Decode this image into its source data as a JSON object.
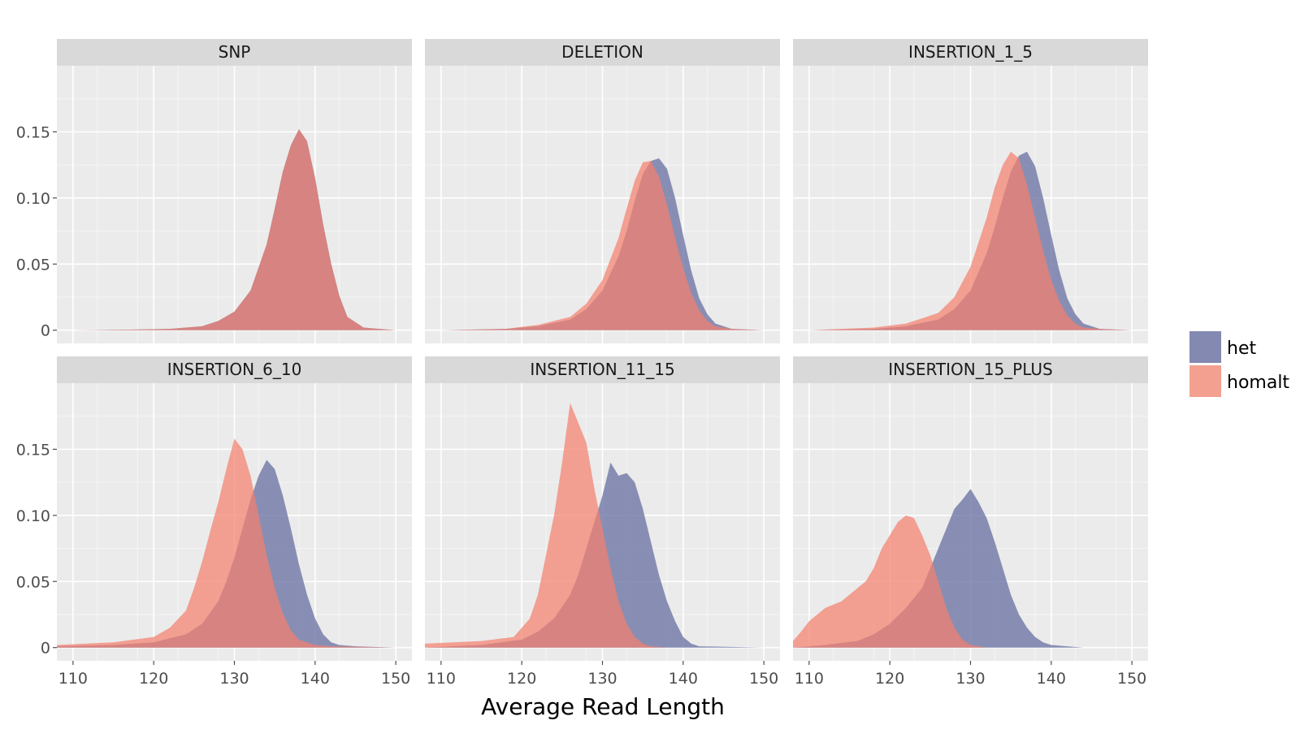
{
  "chart_data": {
    "type": "area",
    "kind": "faceted overlapping histograms",
    "xlabel": "Average Read Length",
    "ylabel": "",
    "xlim": [
      108,
      152
    ],
    "ylim": [
      -0.01,
      0.2
    ],
    "x_ticks": [
      110,
      120,
      130,
      140,
      150
    ],
    "y_ticks": [
      0,
      0.05,
      0.1,
      0.15
    ],
    "y_tick_labels": [
      "0",
      "0.05",
      "0.10",
      "0.15"
    ],
    "grid": true,
    "legend": {
      "position": "right",
      "entries": [
        {
          "label": "het",
          "color": "#8389b0"
        },
        {
          "label": "homalt",
          "color": "#f4a091"
        }
      ]
    },
    "series_colors": {
      "het": "#6b73a3",
      "homalt": "#f4806e",
      "overlap": "#cc6f6e"
    },
    "facets": [
      {
        "title": "SNP",
        "het": {
          "x": [
            110,
            118,
            122,
            126,
            128,
            130,
            132,
            134,
            135,
            136,
            137,
            138,
            139,
            140,
            141,
            142,
            143,
            144,
            146,
            150
          ],
          "y": [
            0,
            0.0005,
            0.001,
            0.003,
            0.007,
            0.014,
            0.03,
            0.065,
            0.092,
            0.12,
            0.14,
            0.152,
            0.143,
            0.115,
            0.08,
            0.05,
            0.026,
            0.01,
            0.002,
            0
          ]
        },
        "homalt": {
          "x": [
            110,
            118,
            122,
            126,
            128,
            130,
            132,
            134,
            135,
            136,
            137,
            138,
            139,
            140,
            141,
            142,
            143,
            144,
            146,
            150
          ],
          "y": [
            0,
            0.0005,
            0.001,
            0.003,
            0.007,
            0.014,
            0.03,
            0.065,
            0.092,
            0.12,
            0.14,
            0.152,
            0.143,
            0.115,
            0.08,
            0.05,
            0.026,
            0.01,
            0.002,
            0
          ]
        }
      },
      {
        "title": "DELETION",
        "het": {
          "x": [
            110,
            118,
            122,
            126,
            128,
            130,
            132,
            133,
            134,
            135,
            136,
            137,
            138,
            139,
            140,
            141,
            142,
            143,
            144,
            146,
            150
          ],
          "y": [
            0,
            0.001,
            0.003,
            0.008,
            0.016,
            0.03,
            0.056,
            0.075,
            0.098,
            0.118,
            0.128,
            0.13,
            0.122,
            0.1,
            0.072,
            0.045,
            0.024,
            0.012,
            0.005,
            0.001,
            0
          ]
        },
        "homalt": {
          "x": [
            110,
            118,
            122,
            126,
            128,
            130,
            132,
            133,
            134,
            135,
            136,
            137,
            138,
            139,
            140,
            141,
            142,
            143,
            144,
            146,
            150
          ],
          "y": [
            0,
            0.001,
            0.004,
            0.01,
            0.02,
            0.038,
            0.07,
            0.092,
            0.113,
            0.127,
            0.128,
            0.116,
            0.095,
            0.07,
            0.047,
            0.028,
            0.015,
            0.007,
            0.003,
            0.001,
            0
          ]
        }
      },
      {
        "title": "INSERTION_1_5",
        "het": {
          "x": [
            110,
            118,
            122,
            126,
            128,
            130,
            132,
            133,
            134,
            135,
            136,
            137,
            138,
            139,
            140,
            141,
            142,
            143,
            144,
            146,
            150
          ],
          "y": [
            0,
            0.001,
            0.003,
            0.008,
            0.016,
            0.03,
            0.058,
            0.078,
            0.1,
            0.12,
            0.132,
            0.135,
            0.124,
            0.1,
            0.072,
            0.045,
            0.024,
            0.012,
            0.005,
            0.001,
            0
          ]
        },
        "homalt": {
          "x": [
            110,
            118,
            122,
            126,
            128,
            130,
            132,
            133,
            134,
            135,
            136,
            137,
            138,
            139,
            140,
            141,
            142,
            143,
            144,
            146,
            150
          ],
          "y": [
            0,
            0.002,
            0.005,
            0.013,
            0.025,
            0.048,
            0.085,
            0.108,
            0.125,
            0.135,
            0.13,
            0.11,
            0.085,
            0.06,
            0.038,
            0.022,
            0.011,
            0.005,
            0.002,
            0.001,
            0
          ]
        }
      },
      {
        "title": "INSERTION_6_10",
        "het": {
          "x": [
            108,
            115,
            120,
            124,
            126,
            128,
            129,
            130,
            131,
            132,
            133,
            134,
            135,
            136,
            137,
            138,
            139,
            140,
            141,
            142,
            143,
            145,
            150
          ],
          "y": [
            0.001,
            0.002,
            0.004,
            0.01,
            0.018,
            0.035,
            0.05,
            0.068,
            0.09,
            0.112,
            0.13,
            0.142,
            0.135,
            0.115,
            0.09,
            0.063,
            0.04,
            0.022,
            0.01,
            0.004,
            0.002,
            0.001,
            0
          ]
        },
        "homalt": {
          "x": [
            108,
            115,
            120,
            122,
            124,
            125,
            126,
            127,
            128,
            129,
            130,
            131,
            132,
            133,
            134,
            135,
            136,
            137,
            138,
            140,
            142,
            150
          ],
          "y": [
            0.002,
            0.004,
            0.008,
            0.015,
            0.028,
            0.045,
            0.065,
            0.088,
            0.11,
            0.135,
            0.158,
            0.15,
            0.13,
            0.1,
            0.07,
            0.045,
            0.026,
            0.013,
            0.006,
            0.002,
            0.001,
            0
          ]
        }
      },
      {
        "title": "INSERTION_11_15",
        "het": {
          "x": [
            108,
            115,
            120,
            122,
            124,
            126,
            127,
            128,
            129,
            130,
            131,
            132,
            133,
            134,
            135,
            136,
            137,
            138,
            139,
            140,
            141,
            142,
            150
          ],
          "y": [
            0,
            0.002,
            0.006,
            0.012,
            0.022,
            0.04,
            0.055,
            0.075,
            0.095,
            0.115,
            0.14,
            0.13,
            0.132,
            0.125,
            0.105,
            0.08,
            0.055,
            0.035,
            0.02,
            0.008,
            0.003,
            0.001,
            0
          ]
        },
        "homalt": {
          "x": [
            108,
            115,
            119,
            120,
            121,
            122,
            123,
            124,
            125,
            126,
            127,
            128,
            129,
            130,
            131,
            132,
            133,
            134,
            135,
            136,
            138,
            150
          ],
          "y": [
            0.003,
            0.005,
            0.008,
            0.015,
            0.022,
            0.04,
            0.07,
            0.1,
            0.14,
            0.185,
            0.17,
            0.155,
            0.12,
            0.09,
            0.06,
            0.035,
            0.018,
            0.008,
            0.003,
            0.001,
            0,
            0
          ]
        }
      },
      {
        "title": "INSERTION_15_PLUS",
        "het": {
          "x": [
            108,
            112,
            116,
            118,
            120,
            122,
            124,
            125,
            126,
            127,
            128,
            129,
            130,
            131,
            132,
            133,
            134,
            135,
            136,
            137,
            138,
            139,
            140,
            142,
            144,
            150
          ],
          "y": [
            0,
            0.002,
            0.005,
            0.01,
            0.018,
            0.03,
            0.045,
            0.06,
            0.075,
            0.09,
            0.105,
            0.112,
            0.12,
            0.11,
            0.098,
            0.08,
            0.06,
            0.04,
            0.025,
            0.015,
            0.008,
            0.004,
            0.002,
            0.001,
            0,
            0
          ]
        },
        "homalt": {
          "x": [
            108,
            109,
            110,
            112,
            114,
            116,
            117,
            118,
            119,
            120,
            121,
            122,
            123,
            124,
            125,
            126,
            127,
            128,
            129,
            130,
            132,
            150
          ],
          "y": [
            0.005,
            0.012,
            0.02,
            0.03,
            0.035,
            0.045,
            0.05,
            0.06,
            0.075,
            0.085,
            0.095,
            0.1,
            0.098,
            0.085,
            0.07,
            0.05,
            0.03,
            0.015,
            0.006,
            0.002,
            0,
            0
          ]
        }
      }
    ]
  }
}
